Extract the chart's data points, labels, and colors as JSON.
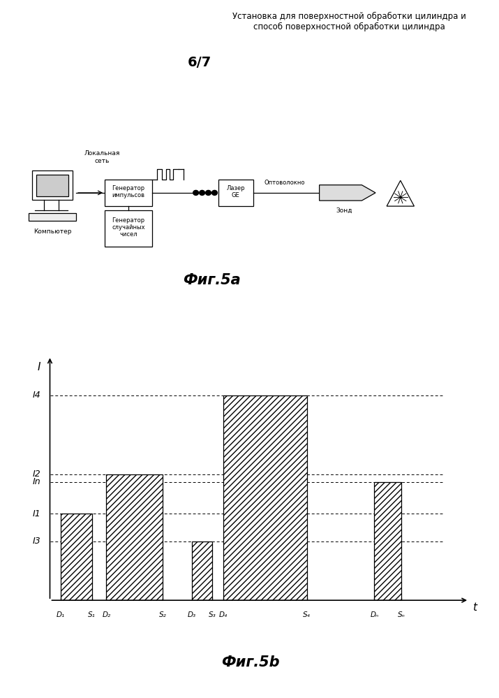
{
  "title_text": "Установка для поверхностной обработки цилиндра и\nспособ поверхностной обработки цилиндра",
  "page_label": "6/7",
  "fig5a_label": "Фиг.5a",
  "fig5b_label": "Фиг.5b",
  "background_color": "#ffffff",
  "I1": 2.2,
  "I2": 3.2,
  "I3": 1.5,
  "I4": 5.2,
  "In": 3.0,
  "xlim": [
    0,
    11.5
  ],
  "ylim": [
    0,
    6.2
  ]
}
